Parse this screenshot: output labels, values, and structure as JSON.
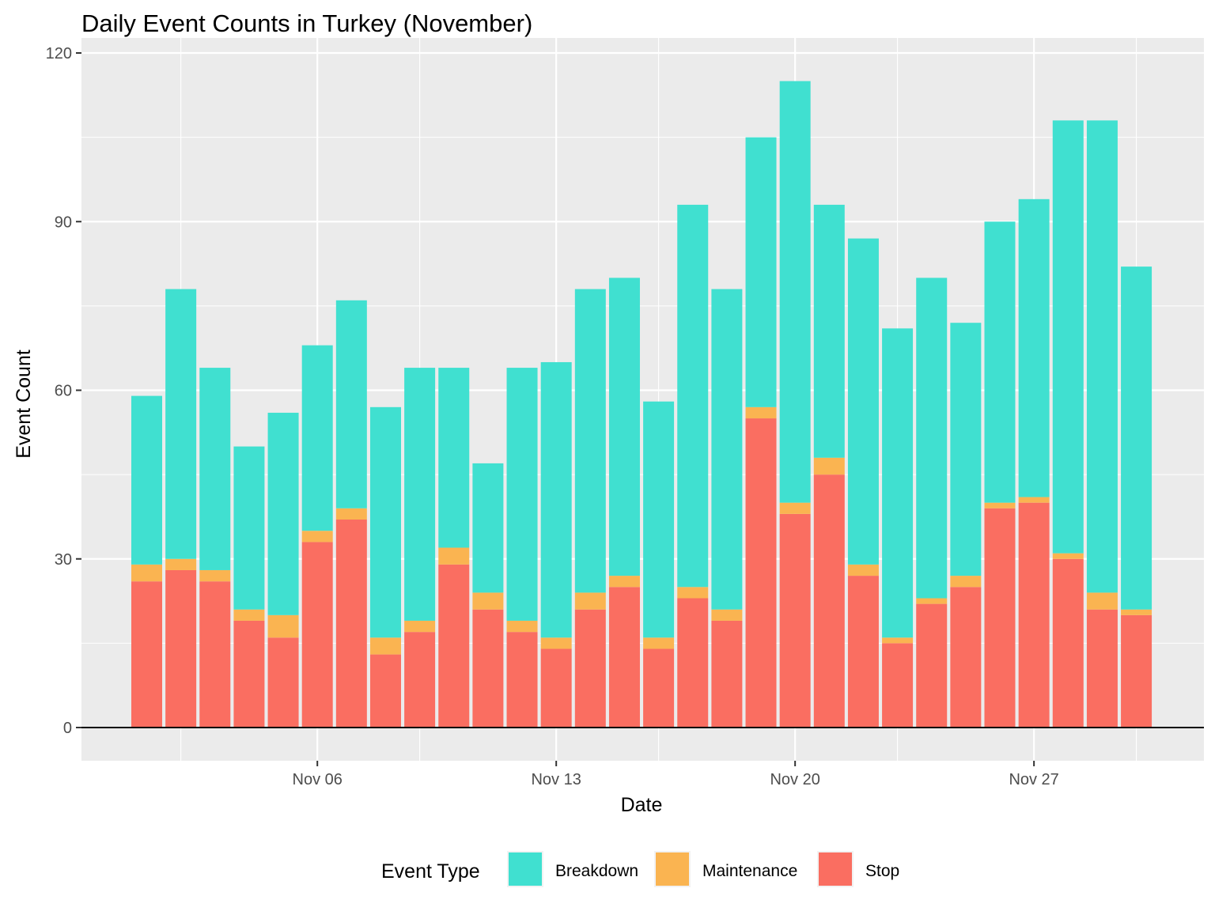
{
  "chart_data": {
    "type": "bar",
    "stacked": true,
    "title": "Daily Event Counts in Turkey (November)",
    "xlabel": "Date",
    "ylabel": "Event Count",
    "ylim": [
      0,
      120
    ],
    "y_ticks": [
      0,
      30,
      60,
      90,
      120
    ],
    "x_ticks": [
      {
        "date": "2023-11-06",
        "label": "Nov 06"
      },
      {
        "date": "2023-11-13",
        "label": "Nov 13"
      },
      {
        "date": "2023-11-20",
        "label": "Nov 20"
      },
      {
        "date": "2023-11-27",
        "label": "Nov 27"
      }
    ],
    "x_minor_dates": [
      "2023-11-02",
      "2023-11-09",
      "2023-11-16",
      "2023-11-23",
      "2023-11-30"
    ],
    "x": [
      "2023-11-01",
      "2023-11-02",
      "2023-11-03",
      "2023-11-04",
      "2023-11-05",
      "2023-11-06",
      "2023-11-07",
      "2023-11-08",
      "2023-11-09",
      "2023-11-10",
      "2023-11-11",
      "2023-11-12",
      "2023-11-13",
      "2023-11-14",
      "2023-11-15",
      "2023-11-16",
      "2023-11-17",
      "2023-11-18",
      "2023-11-19",
      "2023-11-20",
      "2023-11-21",
      "2023-11-22",
      "2023-11-23",
      "2023-11-24",
      "2023-11-25",
      "2023-11-26",
      "2023-11-27",
      "2023-11-28",
      "2023-11-29",
      "2023-11-30"
    ],
    "series": [
      {
        "name": "Stop",
        "color": "#FA6E61",
        "values": [
          26,
          28,
          26,
          19,
          16,
          33,
          37,
          13,
          17,
          29,
          21,
          17,
          14,
          21,
          25,
          14,
          23,
          19,
          55,
          38,
          45,
          27,
          15,
          22,
          25,
          39,
          40,
          30,
          21,
          20
        ]
      },
      {
        "name": "Maintenance",
        "color": "#FAB451",
        "values": [
          3,
          2,
          2,
          2,
          4,
          2,
          2,
          3,
          2,
          3,
          3,
          2,
          2,
          3,
          2,
          2,
          2,
          2,
          2,
          2,
          3,
          2,
          1,
          1,
          2,
          1,
          1,
          1,
          3,
          1
        ]
      },
      {
        "name": "Breakdown",
        "color": "#40E0D0",
        "values": [
          30,
          48,
          36,
          29,
          36,
          33,
          37,
          41,
          45,
          32,
          23,
          45,
          49,
          54,
          53,
          42,
          68,
          57,
          48,
          75,
          45,
          58,
          55,
          57,
          45,
          50,
          53,
          77,
          84,
          61
        ]
      }
    ],
    "legend": {
      "title": "Event Type",
      "position": "bottom",
      "order": [
        "Breakdown",
        "Maintenance",
        "Stop"
      ]
    },
    "grid": true,
    "panel_background": "#EBEBEB",
    "gridline_color": "#FFFFFF"
  }
}
